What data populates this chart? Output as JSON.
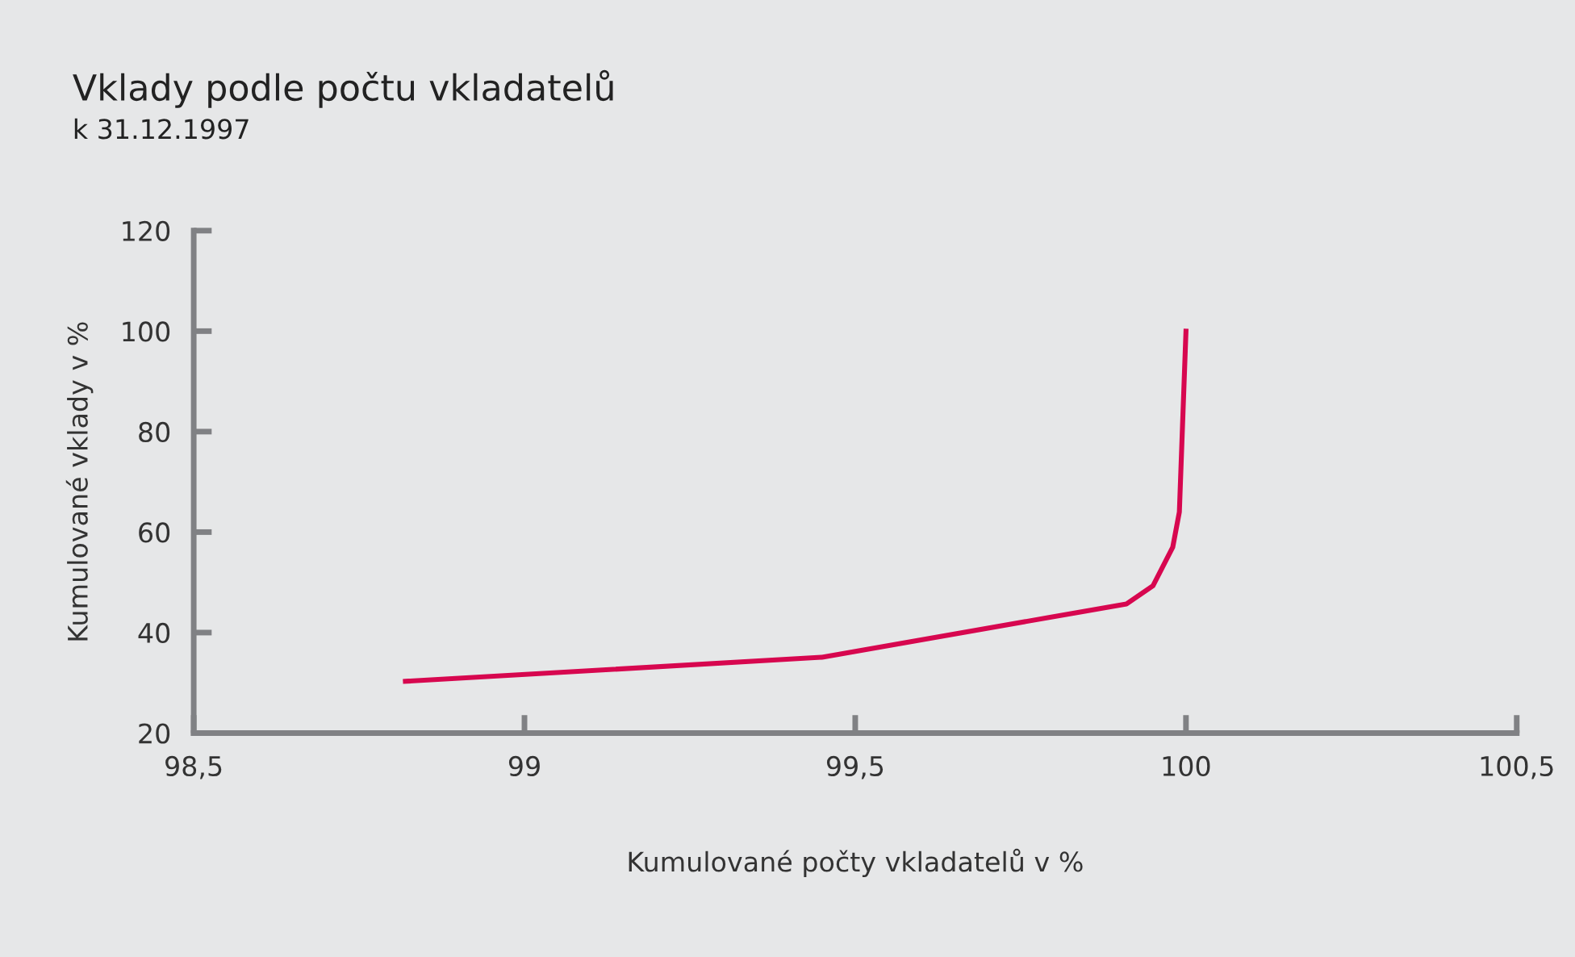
{
  "chart_data": {
    "type": "line",
    "title": "Vklady podle počtu vkladatelů",
    "subtitle": "k 31.12.1997",
    "xlabel": "Kumulované počty vkladatelů v %",
    "ylabel": "Kumulované vklady v %",
    "x": [
      98.82,
      99.45,
      99.91,
      99.95,
      99.98,
      99.99,
      100
    ],
    "series": [
      {
        "color": "#d7074f",
        "values": [
          30.3,
          35.1,
          45.7,
          49.3,
          57,
          64,
          100
        ]
      }
    ],
    "xlim": [
      98.5,
      100.5
    ],
    "xticks": [
      {
        "value": 98.5,
        "label": "98,5"
      },
      99,
      {
        "value": 99.5,
        "label": "99,5"
      },
      100,
      {
        "value": 100.5,
        "label": "100,5"
      }
    ],
    "ylim": [
      20,
      120
    ],
    "yticks": [
      20,
      40,
      60,
      80,
      100,
      120
    ],
    "grid": false,
    "legend": false,
    "marker": "none",
    "line_style": "solid"
  }
}
